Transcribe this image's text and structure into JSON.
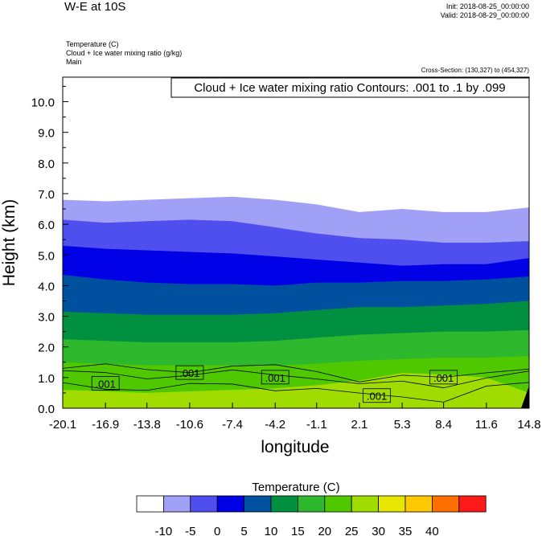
{
  "header": {
    "title": "W-E at 10S",
    "init": "Init: 2018-08-25_00:00:00",
    "valid": "Valid: 2018-08-29_00:00:00",
    "fields": [
      "Temperature   (C)",
      "Cloud + Ice water mixing ratio   (g/kg)",
      "Main"
    ],
    "cross_section": "Cross-Section: (130,327) to (454,327)"
  },
  "colors": {
    "temperature_bins": [
      "#ffffff",
      "#a0a0f7",
      "#4f4ff0",
      "#0000e6",
      "#0050a0",
      "#009040",
      "#2db82d",
      "#50c800",
      "#a0dc00",
      "#e6e600",
      "#ffc800",
      "#ff7000",
      "#ff1a1a"
    ]
  },
  "chart_data": {
    "type": "contour",
    "contour_label": "Cloud + Ice water mixing ratio Contours: .001 to .1 by .099",
    "xlabel": "longitude",
    "ylabel": "Height (km)",
    "x_ticks": [
      "-20.1",
      "-16.9",
      "-13.8",
      "-10.6",
      "-7.4",
      "-4.2",
      "-1.1",
      "2.1",
      "5.3",
      "8.4",
      "11.6",
      "14.8"
    ],
    "x_range": [
      -20.1,
      14.8
    ],
    "y_ticks": [
      "0.0",
      "1.0",
      "2.0",
      "3.0",
      "4.0",
      "5.0",
      "6.0",
      "7.0",
      "8.0",
      "9.0",
      "10.0"
    ],
    "y_range": [
      0,
      10.8
    ],
    "x_samples": [
      -20.1,
      -16.9,
      -13.8,
      -10.6,
      -7.4,
      -4.2,
      -1.1,
      2.1,
      5.3,
      8.4,
      11.6,
      14.8
    ],
    "isotherm_heights_km": [
      {
        "temp": -10,
        "heights": [
          6.8,
          6.75,
          6.8,
          6.85,
          6.9,
          6.8,
          6.65,
          6.4,
          6.5,
          6.4,
          6.4,
          6.55
        ]
      },
      {
        "temp": -5,
        "heights": [
          6.15,
          6.05,
          6.1,
          6.15,
          6.1,
          5.9,
          5.7,
          5.55,
          5.5,
          5.4,
          5.4,
          5.45
        ]
      },
      {
        "temp": 0,
        "heights": [
          5.3,
          5.2,
          5.15,
          5.1,
          5.05,
          4.95,
          4.85,
          4.75,
          4.65,
          4.7,
          4.7,
          4.9
        ]
      },
      {
        "temp": 5,
        "heights": [
          4.35,
          4.2,
          4.1,
          4.05,
          4.05,
          4.0,
          4.1,
          4.1,
          4.15,
          4.15,
          4.2,
          4.3
        ]
      },
      {
        "temp": 10,
        "heights": [
          3.15,
          3.1,
          3.05,
          3.05,
          3.05,
          3.1,
          3.2,
          3.3,
          3.3,
          3.35,
          3.4,
          3.5
        ]
      },
      {
        "temp": 15,
        "heights": [
          2.25,
          2.2,
          2.15,
          2.15,
          2.15,
          2.2,
          2.3,
          2.4,
          2.45,
          2.5,
          2.5,
          2.55
        ]
      },
      {
        "temp": 20,
        "heights": [
          1.5,
          1.45,
          1.4,
          1.4,
          1.4,
          1.4,
          1.45,
          1.55,
          1.6,
          1.65,
          1.65,
          1.7
        ]
      },
      {
        "temp": 25,
        "heights": [
          0.6,
          0.55,
          0.5,
          0.55,
          0.6,
          0.65,
          0.75,
          0.9,
          1.15,
          1.1,
          1.0,
          0.5
        ]
      }
    ],
    "cloud_label_points": [
      {
        "text": ".001",
        "x": -16.9,
        "y": 0.8
      },
      {
        "text": ".001",
        "x": -10.6,
        "y": 1.15
      },
      {
        "text": ".001",
        "x": -4.2,
        "y": 1.0
      },
      {
        "text": ".001",
        "x": 3.4,
        "y": 0.4
      },
      {
        "text": ".001",
        "x": 8.4,
        "y": 1.0
      }
    ],
    "colorbar": {
      "title": "Temperature  (C)",
      "labels": [
        "-10",
        "-5",
        "0",
        "5",
        "10",
        "15",
        "20",
        "25",
        "30",
        "35",
        "40"
      ]
    }
  }
}
